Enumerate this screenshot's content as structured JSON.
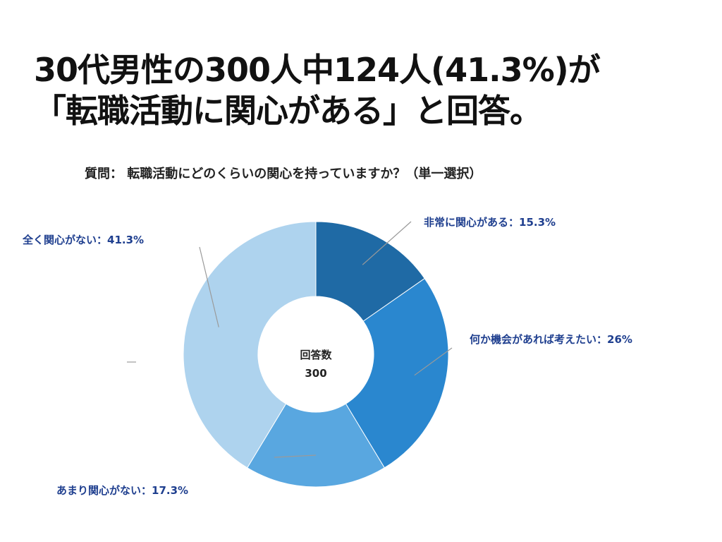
{
  "headline": {
    "line1": "30代男性の300人中124人(41.3%)が",
    "line2": "「転職活動に関心がある」と回答。"
  },
  "question": "質問： 転職活動にどのくらいの関心を持っていますか？（単一選択）",
  "center": {
    "label": "回答数",
    "value": "300"
  },
  "chart_data": {
    "type": "pie",
    "donut": true,
    "categories": [
      "非常に関心がある",
      "何か機会があれば考えたい",
      "あまり関心がない",
      "全く関心がない"
    ],
    "values": [
      15.3,
      26,
      17.3,
      41.3
    ],
    "labels": [
      "非常に関心がある：15.3%",
      "何か機会があれば考えたい：26%",
      "あまり関心がない：17.3%",
      "全く関心がない：41.3%"
    ],
    "colors": [
      "#1f6aa5",
      "#2a87cf",
      "#59a7e0",
      "#aed3ee"
    ],
    "legend": "none"
  }
}
